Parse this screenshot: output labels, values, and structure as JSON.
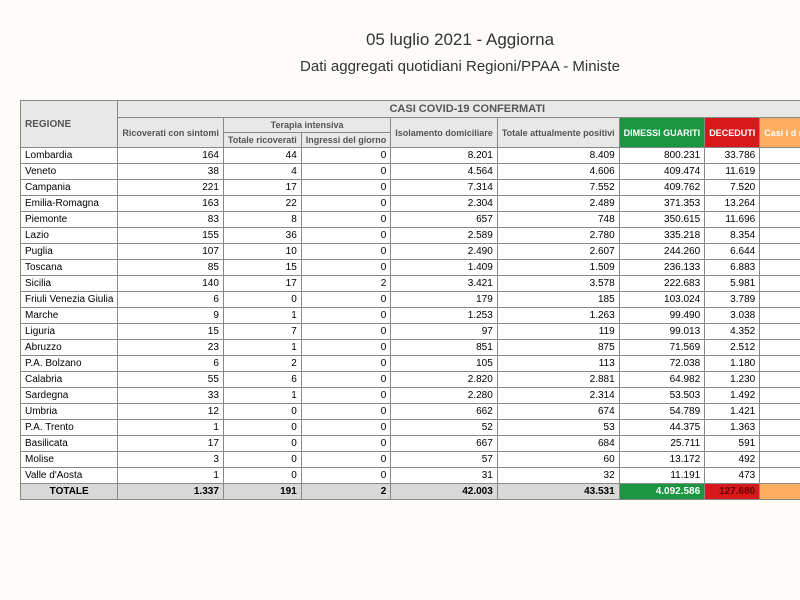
{
  "header": {
    "line1": "05 luglio 2021 - Aggiorna",
    "line2": "Dati aggregati quotidiani Regioni/PPAA - Ministe"
  },
  "table": {
    "section_header": "CASI COVID-19 CONFERMATI",
    "region_header": "REGIONE",
    "terapia_header": "Terapia intensiva",
    "col_headers": {
      "ricoverati": "Ricoverati con sintomi",
      "tot_ricoverati": "Totale ricoverati",
      "ingressi": "Ingressi del giorno",
      "isolamento": "Isolamento domiciliare",
      "tot_positivi": "Totale attualmente positivi",
      "guariti": "DIMESSI GUARITI",
      "deceduti": "DECEDUTI",
      "casi_id": "Casi i d mo"
    },
    "colors": {
      "header_bg": "#e8e8e8",
      "green": "#1a9641",
      "red": "#d7191c",
      "yellow": "#fdae61",
      "total_bg": "#d9d9d9"
    },
    "rows": [
      {
        "region": "Lombardia",
        "c": [
          "164",
          "44",
          "0",
          "8.201",
          "8.409",
          "800.231",
          "33.786",
          ""
        ]
      },
      {
        "region": "Veneto",
        "c": [
          "38",
          "4",
          "0",
          "4.564",
          "4.606",
          "409.474",
          "11.619",
          ""
        ]
      },
      {
        "region": "Campania",
        "c": [
          "221",
          "17",
          "0",
          "7.314",
          "7.552",
          "409.762",
          "7.520",
          ""
        ]
      },
      {
        "region": "Emilia-Romagna",
        "c": [
          "163",
          "22",
          "0",
          "2.304",
          "2.489",
          "371.353",
          "13.264",
          ""
        ]
      },
      {
        "region": "Piemonte",
        "c": [
          "83",
          "8",
          "0",
          "657",
          "748",
          "350.615",
          "11.696",
          ""
        ]
      },
      {
        "region": "Lazio",
        "c": [
          "155",
          "36",
          "0",
          "2.589",
          "2.780",
          "335.218",
          "8.354",
          ""
        ]
      },
      {
        "region": "Puglia",
        "c": [
          "107",
          "10",
          "0",
          "2.490",
          "2.607",
          "244.260",
          "6.644",
          ""
        ]
      },
      {
        "region": "Toscana",
        "c": [
          "85",
          "15",
          "0",
          "1.409",
          "1.509",
          "236.133",
          "6.883",
          ""
        ]
      },
      {
        "region": "Sicilia",
        "c": [
          "140",
          "17",
          "2",
          "3.421",
          "3.578",
          "222.683",
          "5.981",
          ""
        ]
      },
      {
        "region": "Friuli Venezia Giulia",
        "c": [
          "6",
          "0",
          "0",
          "179",
          "185",
          "103.024",
          "3.789",
          ""
        ]
      },
      {
        "region": "Marche",
        "c": [
          "9",
          "1",
          "0",
          "1.253",
          "1.263",
          "99.490",
          "3.038",
          ""
        ]
      },
      {
        "region": "Liguria",
        "c": [
          "15",
          "7",
          "0",
          "97",
          "119",
          "99.013",
          "4.352",
          ""
        ]
      },
      {
        "region": "Abruzzo",
        "c": [
          "23",
          "1",
          "0",
          "851",
          "875",
          "71.569",
          "2.512",
          ""
        ]
      },
      {
        "region": "P.A. Bolzano",
        "c": [
          "6",
          "2",
          "0",
          "105",
          "113",
          "72.038",
          "1.180",
          ""
        ]
      },
      {
        "region": "Calabria",
        "c": [
          "55",
          "6",
          "0",
          "2.820",
          "2.881",
          "64.982",
          "1.230",
          ""
        ]
      },
      {
        "region": "Sardegna",
        "c": [
          "33",
          "1",
          "0",
          "2.280",
          "2.314",
          "53.503",
          "1.492",
          ""
        ]
      },
      {
        "region": "Umbria",
        "c": [
          "12",
          "0",
          "0",
          "662",
          "674",
          "54.789",
          "1.421",
          ""
        ]
      },
      {
        "region": "P.A. Trento",
        "c": [
          "1",
          "0",
          "0",
          "52",
          "53",
          "44.375",
          "1.363",
          ""
        ]
      },
      {
        "region": "Basilicata",
        "c": [
          "17",
          "0",
          "0",
          "667",
          "684",
          "25.711",
          "591",
          ""
        ]
      },
      {
        "region": "Molise",
        "c": [
          "3",
          "0",
          "0",
          "57",
          "60",
          "13.172",
          "492",
          ""
        ]
      },
      {
        "region": "Valle d'Aosta",
        "c": [
          "1",
          "0",
          "0",
          "31",
          "32",
          "11.191",
          "473",
          ""
        ]
      }
    ],
    "total": {
      "label": "TOTALE",
      "c": [
        "1.337",
        "191",
        "2",
        "42.003",
        "43.531",
        "4.092.586",
        "127.680",
        ""
      ]
    }
  }
}
